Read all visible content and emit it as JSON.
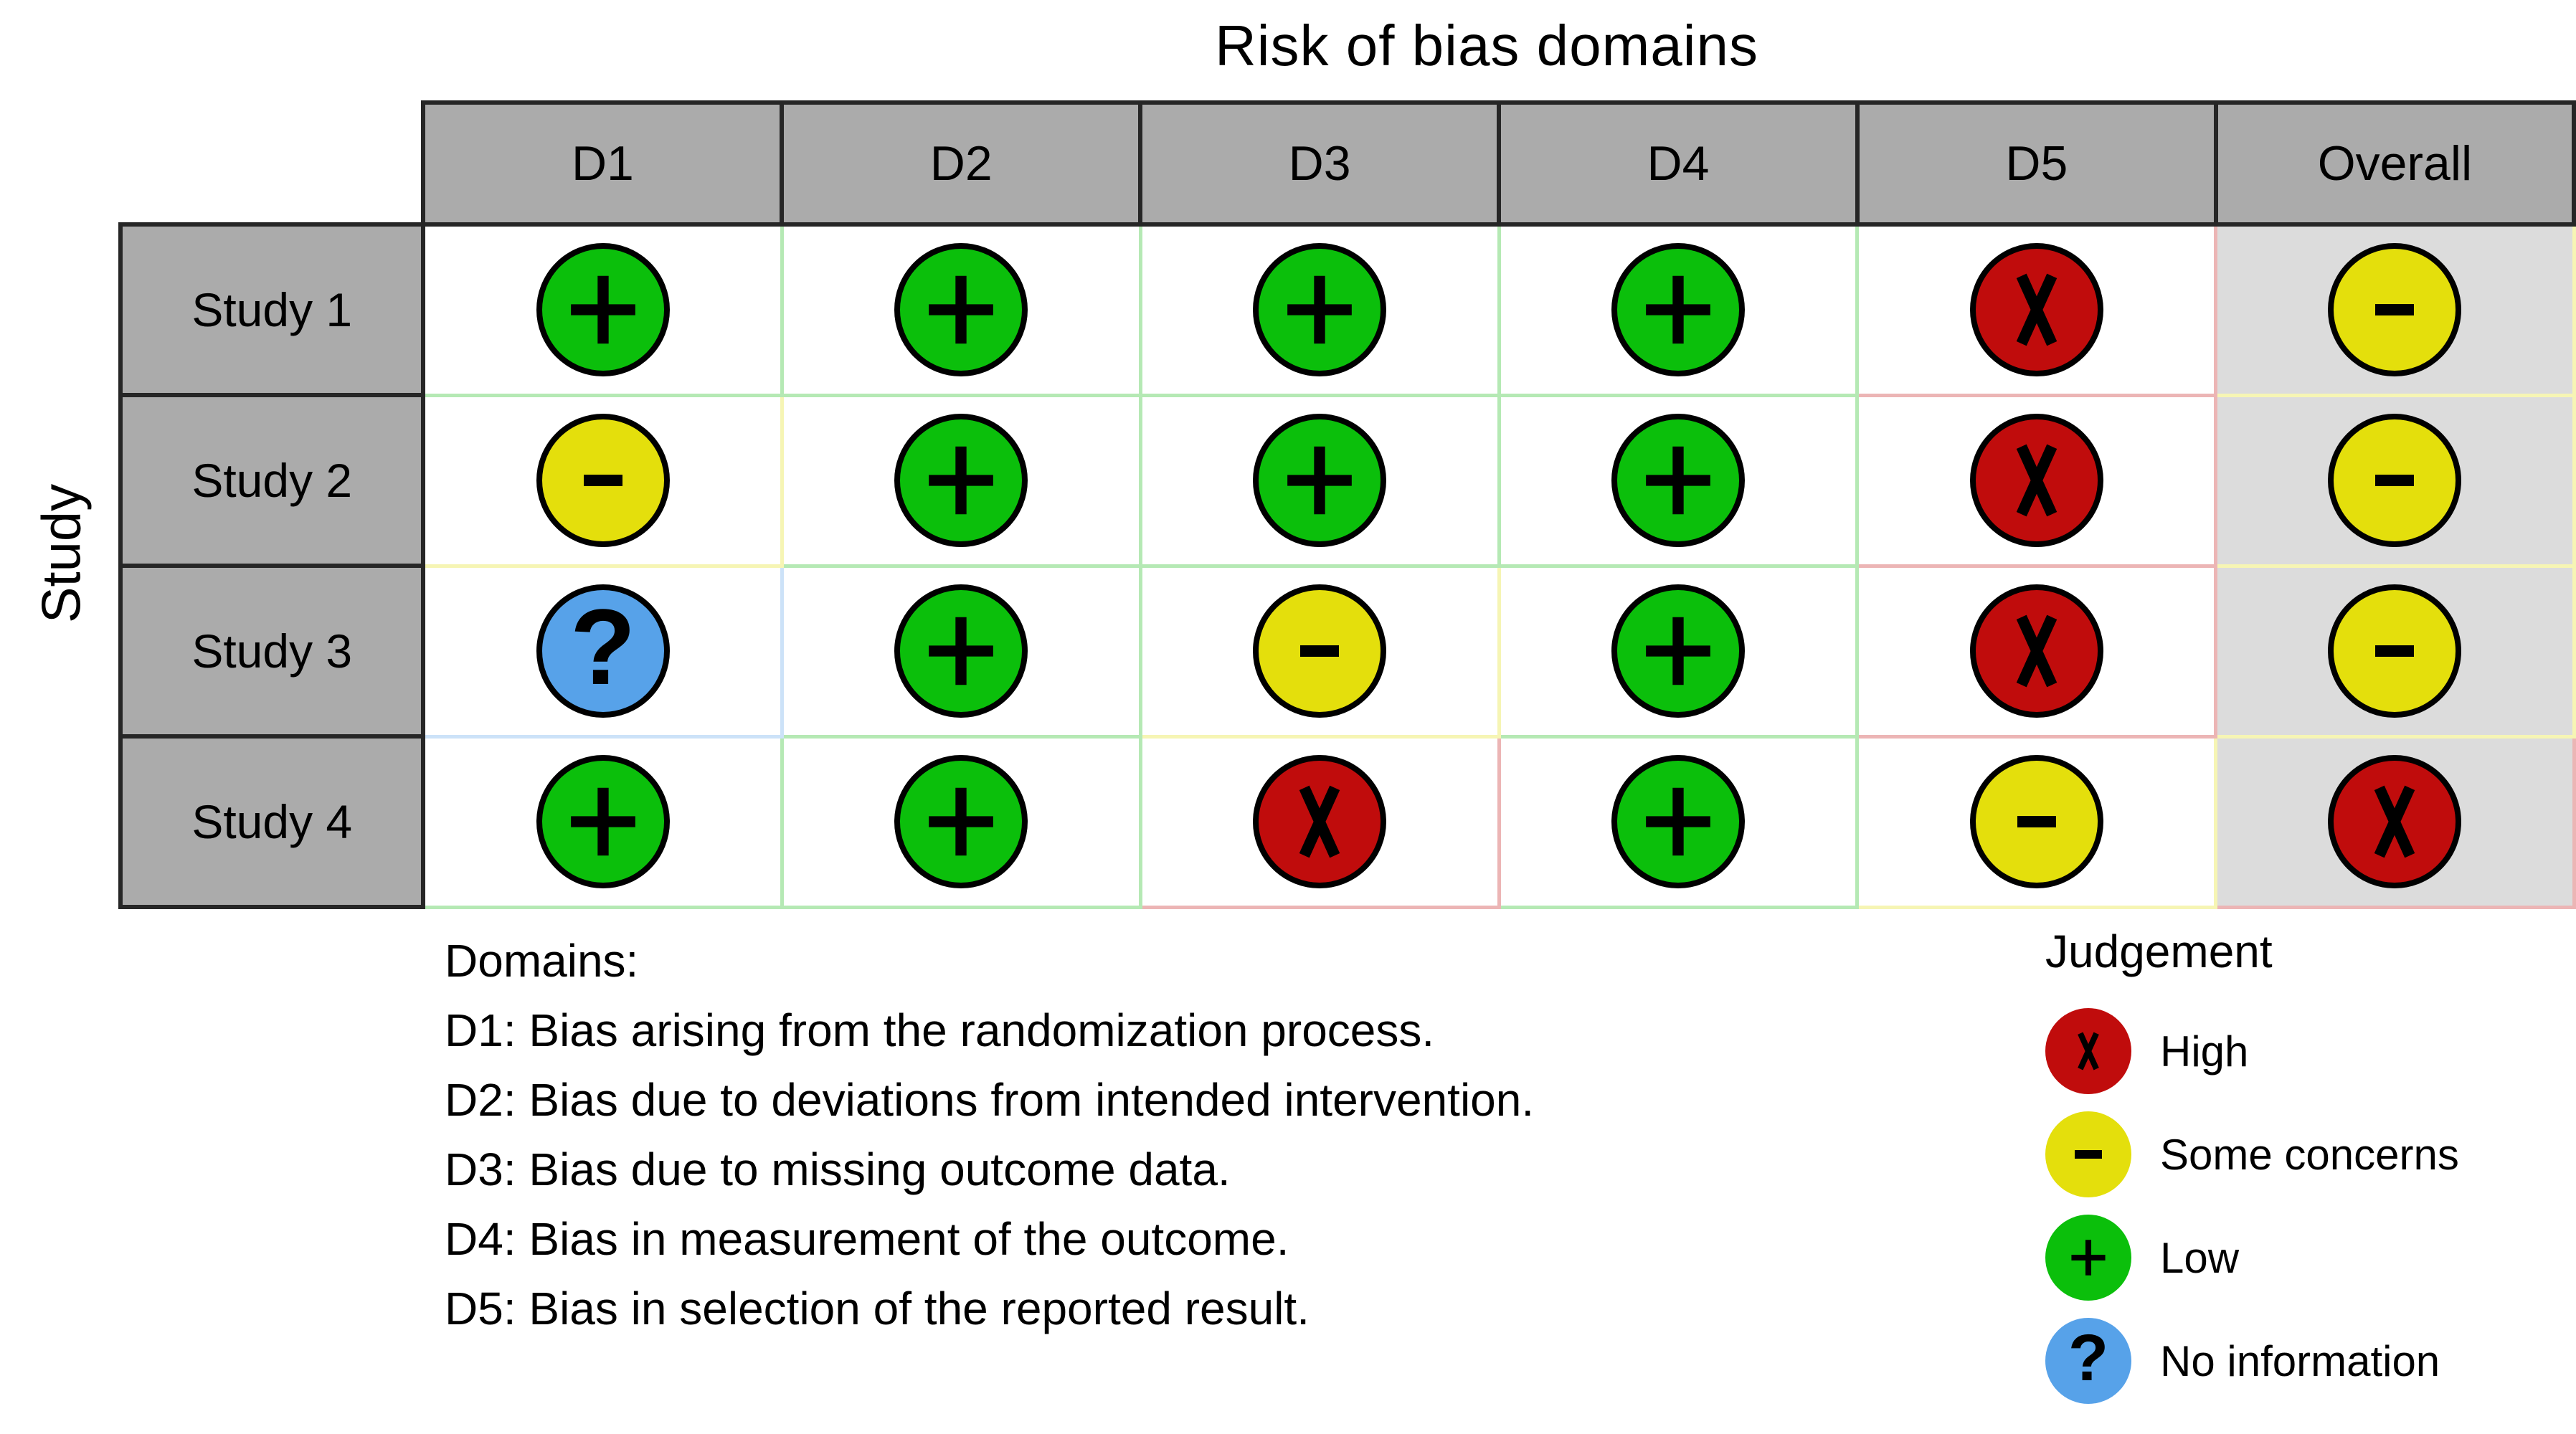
{
  "title": "Risk of bias domains",
  "axis_label": "Study",
  "columns": [
    "D1",
    "D2",
    "D3",
    "D4",
    "D5",
    "Overall"
  ],
  "rows": [
    {
      "label": "Study 1",
      "cells": [
        "low",
        "low",
        "low",
        "low",
        "high",
        "concerns"
      ]
    },
    {
      "label": "Study 2",
      "cells": [
        "concerns",
        "low",
        "low",
        "low",
        "high",
        "concerns"
      ]
    },
    {
      "label": "Study 3",
      "cells": [
        "noinfo",
        "low",
        "concerns",
        "low",
        "high",
        "concerns"
      ]
    },
    {
      "label": "Study 4",
      "cells": [
        "low",
        "low",
        "high",
        "low",
        "concerns",
        "high"
      ]
    }
  ],
  "judgements": {
    "high": {
      "label": "High",
      "symbol": "x",
      "color": "#c00c0c",
      "tint": "#ecb5b5"
    },
    "concerns": {
      "label": "Some concerns",
      "symbol": "-",
      "color": "#e4df0c",
      "tint": "#f6f5b4"
    },
    "low": {
      "label": "Low",
      "symbol": "+",
      "color": "#0bbf0b",
      "tint": "#b5e9b4"
    },
    "noinfo": {
      "label": "No information",
      "symbol": "?",
      "color": "#57a2e9",
      "tint": "#cce2f8"
    }
  },
  "legend": {
    "title": "Judgement",
    "order": [
      "high",
      "concerns",
      "low",
      "noinfo"
    ]
  },
  "domains_note": {
    "heading": "Domains:",
    "lines": [
      "D1: Bias arising from the randomization process.",
      "D2: Bias due to deviations from intended intervention.",
      "D3: Bias due to missing outcome data.",
      "D4: Bias in measurement of the outcome.",
      "D5: Bias in selection of the reported result."
    ]
  },
  "chart_data": {
    "type": "table",
    "title": "Risk of bias domains",
    "x_categories": [
      "D1",
      "D2",
      "D3",
      "D4",
      "D5",
      "Overall"
    ],
    "y_categories": [
      "Study 1",
      "Study 2",
      "Study 3",
      "Study 4"
    ],
    "values": [
      [
        "Low",
        "Low",
        "Low",
        "Low",
        "High",
        "Some concerns"
      ],
      [
        "Some concerns",
        "Low",
        "Low",
        "Low",
        "High",
        "Some concerns"
      ],
      [
        "No information",
        "Low",
        "Some concerns",
        "Low",
        "High",
        "Some concerns"
      ],
      [
        "Low",
        "Low",
        "High",
        "Low",
        "Some concerns",
        "High"
      ]
    ],
    "legend_entries": [
      {
        "label": "High",
        "symbol": "x",
        "color": "#c00c0c"
      },
      {
        "label": "Some concerns",
        "symbol": "-",
        "color": "#e4df0c"
      },
      {
        "label": "Low",
        "symbol": "+",
        "color": "#0bbf0b"
      },
      {
        "label": "No information",
        "symbol": "?",
        "color": "#57a2e9"
      }
    ],
    "layout_hints": {
      "overall_column_shaded": true,
      "header_fill": "#ababab",
      "grid": true
    }
  }
}
